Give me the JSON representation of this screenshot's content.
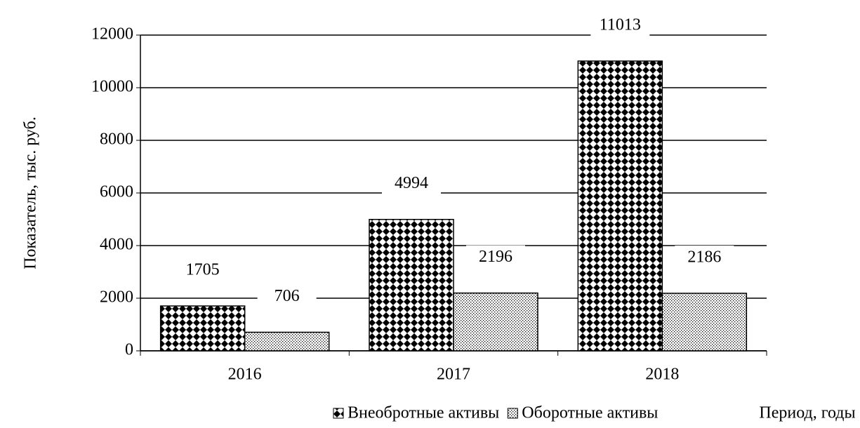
{
  "chart_data": {
    "type": "bar",
    "categories": [
      "2016",
      "2017",
      "2018"
    ],
    "series": [
      {
        "name": "Внеобротные активы",
        "color": "#000000",
        "pattern": "checker",
        "values": [
          1705,
          4994,
          11013
        ]
      },
      {
        "name": "Оборотные активы",
        "color": "#000000",
        "pattern": "dots",
        "values": [
          706,
          2196,
          2186
        ]
      }
    ],
    "ylabel": "Показатель, тыс. руб.",
    "xlabel": "Период, годы",
    "ylim": [
      0,
      12000
    ],
    "yticks": [
      0,
      2000,
      4000,
      6000,
      8000,
      10000,
      12000
    ],
    "grid": true,
    "legend": "bottom"
  }
}
